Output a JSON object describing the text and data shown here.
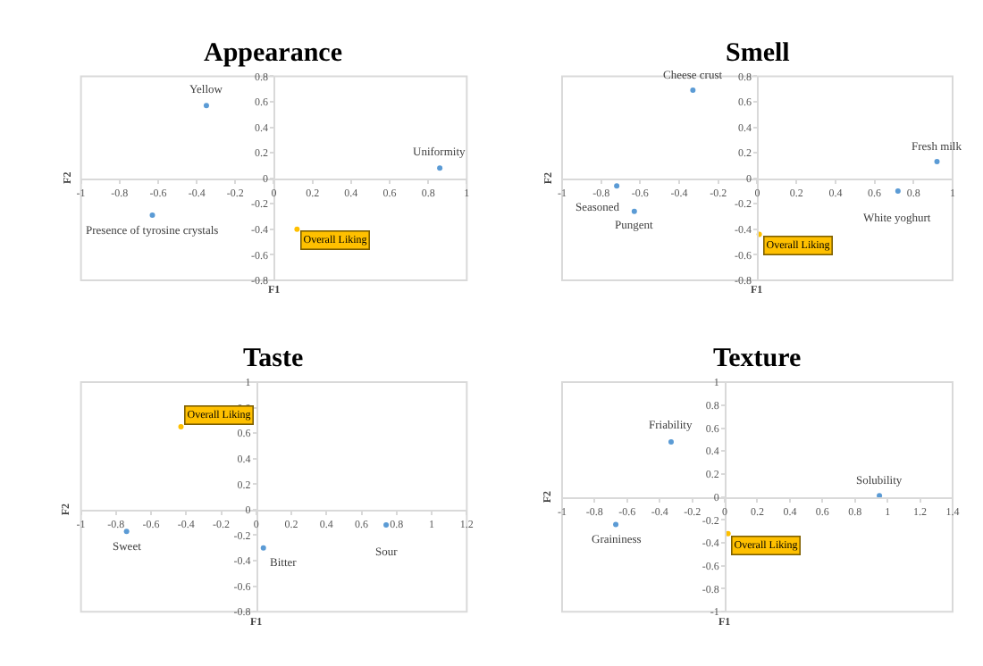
{
  "chart_data": [
    {
      "type": "scatter",
      "title": "Appearance",
      "xlabel": "F1",
      "ylabel": "F2",
      "xlim": [
        -1,
        1
      ],
      "xticks": [
        -1,
        -0.8,
        -0.6,
        -0.4,
        -0.2,
        0,
        0.2,
        0.4,
        0.6,
        0.8,
        1
      ],
      "ylim": [
        -0.8,
        0.8
      ],
      "yticks": [
        -0.8,
        -0.6,
        -0.4,
        -0.2,
        0,
        0.2,
        0.4,
        0.6,
        0.8
      ],
      "grid": false,
      "legend": false,
      "marker": "circle",
      "series": [
        {
          "name": "Yellow",
          "color": "#5b9bd5",
          "x": [
            -0.35
          ],
          "values": [
            0.57
          ]
        },
        {
          "name": "Uniformity",
          "color": "#5b9bd5",
          "x": [
            0.86
          ],
          "values": [
            0.08
          ]
        },
        {
          "name": "Presence of tyrosine crystals",
          "color": "#5b9bd5",
          "x": [
            -0.63
          ],
          "values": [
            -0.29
          ]
        },
        {
          "color": "#ffc000",
          "x": [
            0.12
          ],
          "values": [
            -0.4
          ]
        }
      ],
      "annotations": [
        {
          "text": "Overall Liking",
          "x": 0.12,
          "y": -0.4
        }
      ]
    },
    {
      "type": "scatter",
      "title": "Smell",
      "xlabel": "F1",
      "ylabel": "F2",
      "xlim": [
        -1,
        1
      ],
      "xticks": [
        -1,
        -0.8,
        -0.6,
        -0.4,
        -0.2,
        0,
        0.2,
        0.4,
        0.6,
        0.8,
        1
      ],
      "ylim": [
        -0.8,
        0.8
      ],
      "yticks": [
        -0.8,
        -0.6,
        -0.4,
        -0.2,
        0,
        0.2,
        0.4,
        0.6,
        0.8
      ],
      "grid": false,
      "legend": false,
      "marker": "circle",
      "series": [
        {
          "name": "Cheese crust",
          "color": "#5b9bd5",
          "x": [
            -0.33
          ],
          "values": [
            0.69
          ]
        },
        {
          "name": "Fresh milk",
          "color": "#5b9bd5",
          "x": [
            0.92
          ],
          "values": [
            0.13
          ]
        },
        {
          "name": "White yoghurt",
          "color": "#5b9bd5",
          "x": [
            0.72
          ],
          "values": [
            -0.1
          ]
        },
        {
          "name": "Seasoned",
          "color": "#5b9bd5",
          "x": [
            -0.72
          ],
          "values": [
            -0.06
          ]
        },
        {
          "name": "Pungent",
          "color": "#5b9bd5",
          "x": [
            -0.63
          ],
          "values": [
            -0.26
          ]
        },
        {
          "color": "#ffc000",
          "x": [
            0.01
          ],
          "values": [
            -0.44
          ]
        }
      ],
      "annotations": [
        {
          "text": "Overall Liking",
          "x": 0.01,
          "y": -0.44
        }
      ]
    },
    {
      "type": "scatter",
      "title": "Taste",
      "xlabel": "F1",
      "ylabel": "F2",
      "xlim": [
        -1,
        1.2
      ],
      "xticks": [
        -1,
        -0.8,
        -0.6,
        -0.4,
        -0.2,
        0,
        0.2,
        0.4,
        0.6,
        0.8,
        1,
        1.2
      ],
      "ylim": [
        -0.8,
        1
      ],
      "yticks": [
        -0.8,
        -0.6,
        -0.4,
        -0.2,
        0,
        0.2,
        0.4,
        0.6,
        0.8,
        1
      ],
      "grid": false,
      "legend": false,
      "marker": "circle",
      "series": [
        {
          "name": "Sweet",
          "color": "#5b9bd5",
          "x": [
            -0.74
          ],
          "values": [
            -0.17
          ]
        },
        {
          "name": "Bitter",
          "color": "#5b9bd5",
          "x": [
            0.04
          ],
          "values": [
            -0.3
          ]
        },
        {
          "name": "Sour",
          "color": "#5b9bd5",
          "x": [
            0.74
          ],
          "values": [
            -0.12
          ]
        },
        {
          "color": "#ffc000",
          "x": [
            -0.43
          ],
          "values": [
            0.65
          ]
        }
      ],
      "annotations": [
        {
          "text": "Overall Liking",
          "x": -0.43,
          "y": 0.65
        }
      ]
    },
    {
      "type": "scatter",
      "title": "Texture",
      "xlabel": "F1",
      "ylabel": "F2",
      "xlim": [
        -1,
        1.4
      ],
      "xticks": [
        -1,
        -0.8,
        -0.6,
        -0.4,
        -0.2,
        0,
        0.2,
        0.4,
        0.6,
        0.8,
        1,
        1.2,
        1.4
      ],
      "ylim": [
        -1,
        1
      ],
      "yticks": [
        -1,
        -0.8,
        -0.6,
        -0.4,
        -0.2,
        0,
        0.2,
        0.4,
        0.6,
        0.8,
        1
      ],
      "grid": false,
      "legend": false,
      "marker": "circle",
      "series": [
        {
          "name": "Friability",
          "color": "#5b9bd5",
          "x": [
            -0.33
          ],
          "values": [
            0.48
          ]
        },
        {
          "name": "Solubility",
          "color": "#5b9bd5",
          "x": [
            0.95
          ],
          "values": [
            0.01
          ]
        },
        {
          "name": "Graininess",
          "color": "#5b9bd5",
          "x": [
            -0.67
          ],
          "values": [
            -0.24
          ]
        },
        {
          "color": "#ffc000",
          "x": [
            0.02
          ],
          "values": [
            -0.32
          ]
        }
      ],
      "annotations": [
        {
          "text": "Overall Liking",
          "x": 0.02,
          "y": -0.32
        }
      ]
    }
  ]
}
